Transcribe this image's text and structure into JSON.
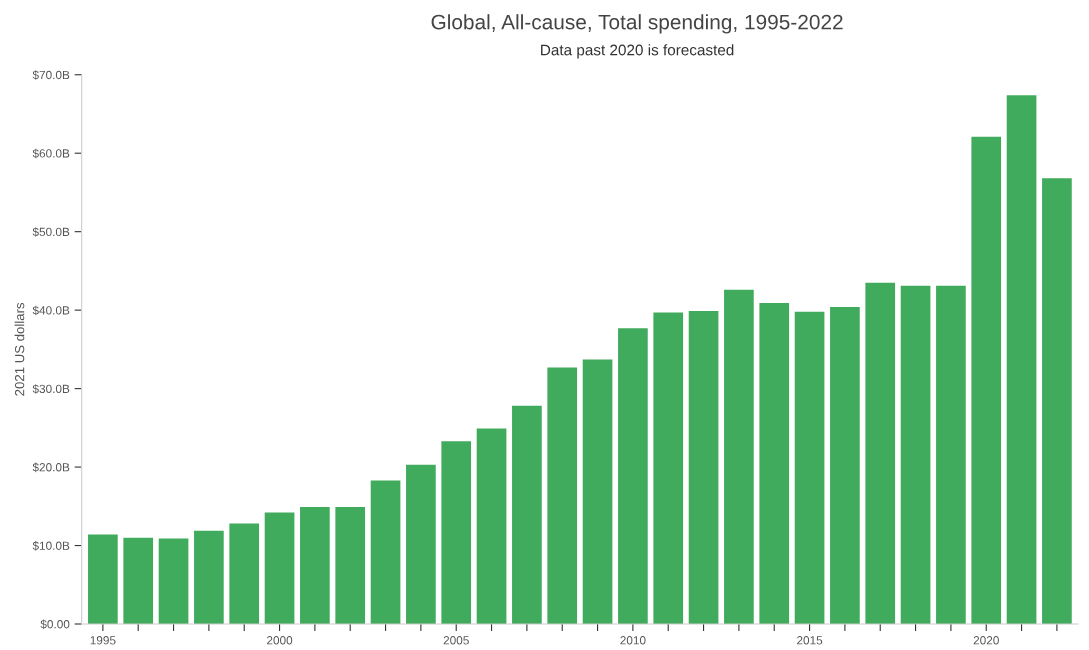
{
  "chart_data": {
    "type": "bar",
    "title": "Global, All-cause, Total spending, 1995-2022",
    "subtitle": "Data past 2020 is forecasted",
    "ylabel": "2021 US dollars",
    "categories": [
      "1995",
      null,
      null,
      null,
      null,
      "2000",
      null,
      null,
      null,
      null,
      "2005",
      null,
      null,
      null,
      null,
      "2010",
      null,
      null,
      null,
      null,
      "2015",
      null,
      null,
      null,
      null,
      "2020",
      null,
      null
    ],
    "values": [
      11.4,
      11.0,
      10.9,
      11.9,
      12.8,
      14.2,
      14.9,
      14.9,
      18.3,
      20.3,
      23.3,
      24.9,
      27.8,
      32.7,
      33.7,
      37.7,
      39.7,
      39.9,
      42.6,
      40.9,
      39.8,
      40.4,
      43.5,
      43.1,
      43.1,
      62.1,
      67.4,
      56.8
    ],
    "color": "#41ab5d",
    "ylim": [
      0,
      70
    ],
    "yticks": [
      {
        "value": 0,
        "label": "$0.00"
      },
      {
        "value": 10,
        "label": "$10.0B"
      },
      {
        "value": 20,
        "label": "$20.0B"
      },
      {
        "value": 30,
        "label": "$30.0B"
      },
      {
        "value": 40,
        "label": "$40.0B"
      },
      {
        "value": 50,
        "label": "$50.0B"
      },
      {
        "value": 60,
        "label": "$60.0B"
      },
      {
        "value": 70,
        "label": "$70.0B"
      }
    ],
    "grid": false
  }
}
